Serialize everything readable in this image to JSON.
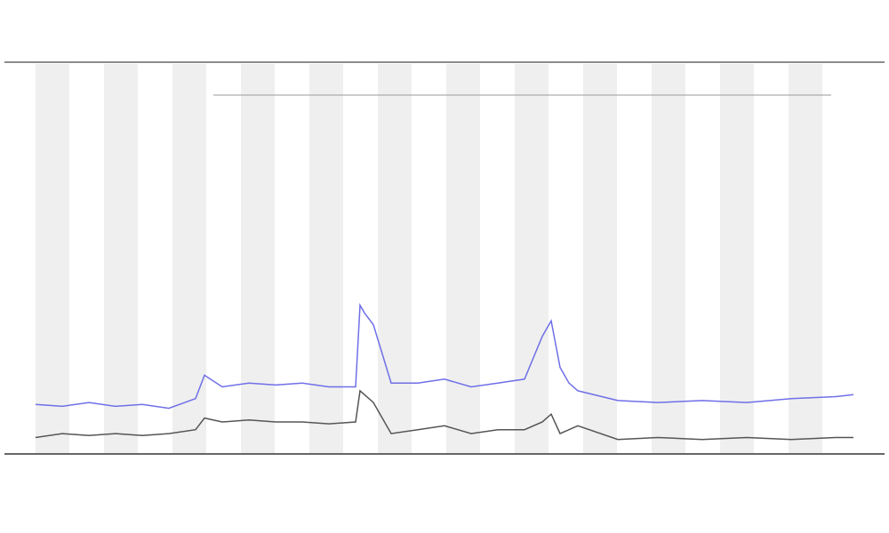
{
  "chart_data": {
    "type": "line",
    "x": [
      0,
      30,
      60,
      90,
      120,
      150,
      180,
      190,
      210,
      240,
      270,
      300,
      330,
      360,
      365,
      370,
      380,
      400,
      430,
      460,
      490,
      520,
      550,
      570,
      580,
      590,
      600,
      610,
      655,
      700,
      750,
      800,
      850,
      900,
      920
    ],
    "xlim": [
      0,
      920
    ],
    "ylim": [
      0,
      100
    ],
    "series": [
      {
        "color": "#6f6fe8",
        "values": [
          12.5,
          12,
          13,
          12,
          12.5,
          11.5,
          14,
          20,
          17,
          18,
          17.5,
          18,
          17,
          17,
          38,
          36,
          33,
          18,
          18,
          19,
          17,
          18,
          19,
          30,
          34,
          22,
          18,
          16,
          13.5,
          13,
          13.5,
          13,
          14,
          14.5,
          15
        ]
      },
      {
        "color": "#555555",
        "values": [
          4,
          5,
          4.5,
          5,
          4.5,
          5,
          6,
          9,
          8,
          8.5,
          8,
          8,
          7.5,
          8,
          16,
          15,
          13,
          5,
          6,
          7,
          5,
          6,
          6,
          8,
          10,
          5,
          6,
          7,
          3.5,
          4,
          3.5,
          4,
          3.5,
          4,
          4
        ]
      }
    ]
  }
}
